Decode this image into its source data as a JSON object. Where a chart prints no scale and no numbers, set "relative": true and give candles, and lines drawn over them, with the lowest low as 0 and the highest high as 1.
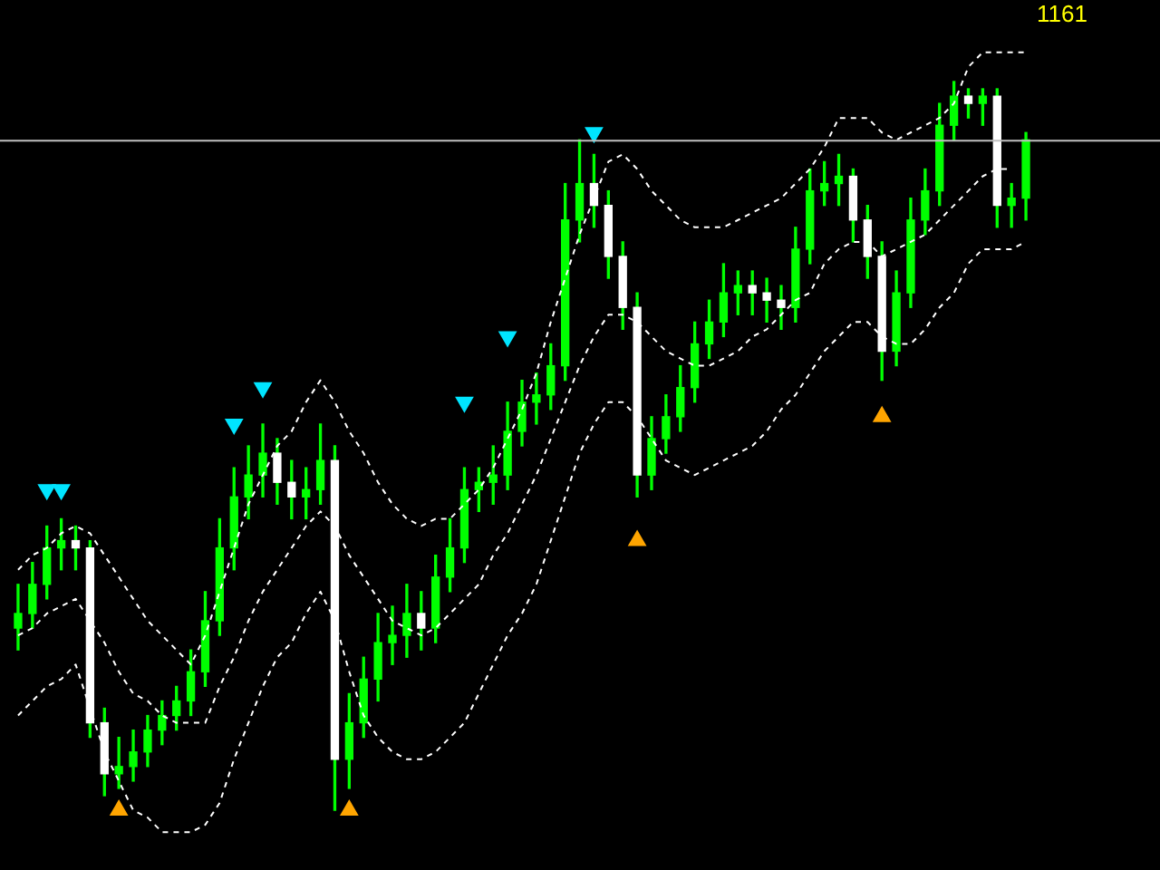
{
  "chart_data": {
    "type": "candlestick",
    "relative": true,
    "color": "#00ff00",
    "colors": [
      "#00ff00",
      "#00ff00",
      "#00ff00",
      "#00ff00",
      "#ffffff",
      "#ffffff",
      "#ffffff",
      "#00ff00",
      "#00ff00",
      "#00ff00",
      "#00ff00",
      "#00ff00",
      "#00ff00",
      "#00ff00",
      "#00ff00",
      "#00ff00",
      "#00ff00",
      "#00ff00",
      "#ffffff",
      "#ffffff",
      "#00ff00",
      "#00ff00",
      "#ffffff",
      "#00ff00",
      "#00ff00",
      "#00ff00",
      "#00ff00",
      "#00ff00",
      "#ffffff",
      "#00ff00",
      "#00ff00",
      "#00ff00",
      "#00ff00",
      "#00ff00",
      "#00ff00",
      "#00ff00",
      "#00ff00",
      "#00ff00",
      "#00ff00",
      "#00ff00",
      "#ffffff",
      "#ffffff",
      "#ffffff",
      "#ffffff",
      "#00ff00",
      "#00ff00",
      "#00ff00",
      "#00ff00",
      "#00ff00",
      "#00ff00",
      "#00ff00",
      "#ffffff",
      "#ffffff",
      "#ffffff",
      "#00ff00",
      "#00ff00",
      "#00ff00",
      "#00ff00",
      "#ffffff",
      "#ffffff",
      "#ffffff",
      "#00ff00",
      "#00ff00",
      "#00ff00",
      "#00ff00",
      "#00ff00",
      "#ffffff",
      "#00ff00",
      "#ffffff",
      "#00ff00",
      "#00ff00"
    ],
    "categories": [
      null,
      null,
      null,
      null,
      null,
      null,
      null,
      null,
      null,
      null,
      null,
      null,
      null,
      null,
      null,
      null,
      null,
      null,
      null,
      null,
      null,
      null,
      null,
      null,
      null,
      null,
      null,
      null,
      null,
      null,
      null,
      null,
      null,
      null,
      null,
      null,
      null,
      null,
      null,
      null,
      null,
      null,
      null,
      null,
      null,
      null,
      null,
      null,
      null,
      null,
      null,
      null,
      null,
      null,
      null,
      null,
      null,
      null,
      null,
      null,
      null,
      null,
      null,
      null,
      null,
      null,
      null,
      null,
      null,
      null,
      null
    ],
    "ohlc": [
      [
        0.25,
        0.31,
        0.22,
        0.27
      ],
      [
        0.27,
        0.34,
        0.25,
        0.31
      ],
      [
        0.31,
        0.39,
        0.29,
        0.36
      ],
      [
        0.36,
        0.4,
        0.33,
        0.37
      ],
      [
        0.37,
        0.39,
        0.33,
        0.36
      ],
      [
        0.36,
        0.37,
        0.1,
        0.12
      ],
      [
        0.12,
        0.14,
        0.02,
        0.05
      ],
      [
        0.05,
        0.1,
        0.03,
        0.06
      ],
      [
        0.06,
        0.11,
        0.04,
        0.08
      ],
      [
        0.08,
        0.13,
        0.06,
        0.11
      ],
      [
        0.11,
        0.15,
        0.09,
        0.13
      ],
      [
        0.13,
        0.17,
        0.11,
        0.15
      ],
      [
        0.15,
        0.22,
        0.13,
        0.19
      ],
      [
        0.19,
        0.3,
        0.17,
        0.26
      ],
      [
        0.26,
        0.4,
        0.24,
        0.36
      ],
      [
        0.36,
        0.47,
        0.33,
        0.43
      ],
      [
        0.43,
        0.5,
        0.4,
        0.46
      ],
      [
        0.46,
        0.53,
        0.43,
        0.49
      ],
      [
        0.49,
        0.51,
        0.42,
        0.45
      ],
      [
        0.45,
        0.48,
        0.4,
        0.43
      ],
      [
        0.43,
        0.47,
        0.4,
        0.44
      ],
      [
        0.44,
        0.53,
        0.42,
        0.48
      ],
      [
        0.48,
        0.5,
        0.0,
        0.07
      ],
      [
        0.07,
        0.16,
        0.03,
        0.12
      ],
      [
        0.12,
        0.21,
        0.1,
        0.18
      ],
      [
        0.18,
        0.27,
        0.15,
        0.23
      ],
      [
        0.23,
        0.28,
        0.2,
        0.24
      ],
      [
        0.24,
        0.31,
        0.21,
        0.27
      ],
      [
        0.27,
        0.3,
        0.22,
        0.25
      ],
      [
        0.25,
        0.35,
        0.23,
        0.32
      ],
      [
        0.32,
        0.4,
        0.3,
        0.36
      ],
      [
        0.36,
        0.47,
        0.34,
        0.44
      ],
      [
        0.44,
        0.47,
        0.41,
        0.45
      ],
      [
        0.45,
        0.5,
        0.42,
        0.46
      ],
      [
        0.46,
        0.56,
        0.44,
        0.52
      ],
      [
        0.52,
        0.59,
        0.5,
        0.56
      ],
      [
        0.56,
        0.6,
        0.53,
        0.57
      ],
      [
        0.57,
        0.64,
        0.55,
        0.61
      ],
      [
        0.61,
        0.86,
        0.59,
        0.81
      ],
      [
        0.81,
        0.92,
        0.78,
        0.86
      ],
      [
        0.86,
        0.9,
        0.8,
        0.83
      ],
      [
        0.83,
        0.85,
        0.73,
        0.76
      ],
      [
        0.76,
        0.78,
        0.66,
        0.69
      ],
      [
        0.69,
        0.71,
        0.43,
        0.46
      ],
      [
        0.46,
        0.54,
        0.44,
        0.51
      ],
      [
        0.51,
        0.57,
        0.49,
        0.54
      ],
      [
        0.54,
        0.61,
        0.52,
        0.58
      ],
      [
        0.58,
        0.67,
        0.56,
        0.64
      ],
      [
        0.64,
        0.7,
        0.62,
        0.67
      ],
      [
        0.67,
        0.75,
        0.65,
        0.71
      ],
      [
        0.71,
        0.74,
        0.68,
        0.72
      ],
      [
        0.72,
        0.74,
        0.68,
        0.71
      ],
      [
        0.71,
        0.73,
        0.67,
        0.7
      ],
      [
        0.7,
        0.72,
        0.66,
        0.69
      ],
      [
        0.69,
        0.8,
        0.67,
        0.77
      ],
      [
        0.77,
        0.88,
        0.75,
        0.85
      ],
      [
        0.85,
        0.89,
        0.83,
        0.86
      ],
      [
        0.86,
        0.9,
        0.83,
        0.87
      ],
      [
        0.87,
        0.88,
        0.78,
        0.81
      ],
      [
        0.81,
        0.83,
        0.73,
        0.76
      ],
      [
        0.76,
        0.78,
        0.59,
        0.63
      ],
      [
        0.63,
        0.74,
        0.61,
        0.71
      ],
      [
        0.71,
        0.84,
        0.69,
        0.81
      ],
      [
        0.81,
        0.88,
        0.79,
        0.85
      ],
      [
        0.85,
        0.97,
        0.83,
        0.94
      ],
      [
        0.94,
        1.0,
        0.92,
        0.98
      ],
      [
        0.98,
        0.99,
        0.95,
        0.97
      ],
      [
        0.97,
        0.99,
        0.94,
        0.98
      ],
      [
        0.98,
        0.99,
        0.8,
        0.83
      ],
      [
        0.83,
        0.86,
        0.8,
        0.84
      ],
      [
        0.84,
        0.93,
        0.81,
        0.92
      ]
    ],
    "series": [
      {
        "type": "line",
        "line_style": "dashed",
        "color": "#ffffff",
        "values": [
          0.33,
          0.35,
          0.36,
          0.38,
          0.39,
          0.38,
          0.35,
          0.32,
          0.29,
          0.26,
          0.24,
          0.22,
          0.2,
          0.24,
          0.3,
          0.36,
          0.42,
          0.46,
          0.5,
          0.52,
          0.56,
          0.59,
          0.56,
          0.52,
          0.49,
          0.45,
          0.42,
          0.4,
          0.39,
          0.4,
          0.4,
          0.42,
          0.44,
          0.47,
          0.51,
          0.55,
          0.6,
          0.67,
          0.73,
          0.79,
          0.84,
          0.89,
          0.9,
          0.88,
          0.85,
          0.83,
          0.81,
          0.8,
          0.8,
          0.8,
          0.81,
          0.82,
          0.83,
          0.84,
          0.86,
          0.88,
          0.91,
          0.95,
          0.95,
          0.95,
          0.93,
          0.92,
          0.93,
          0.94,
          0.95,
          0.97,
          1.02,
          1.04,
          1.04,
          1.04,
          1.04
        ]
      },
      {
        "type": "line",
        "line_style": "dashed",
        "color": "#ffffff",
        "values": [
          0.24,
          0.25,
          0.27,
          0.28,
          0.29,
          0.26,
          0.23,
          0.19,
          0.16,
          0.15,
          0.13,
          0.12,
          0.12,
          0.12,
          0.17,
          0.21,
          0.26,
          0.3,
          0.33,
          0.36,
          0.39,
          0.41,
          0.39,
          0.35,
          0.32,
          0.29,
          0.26,
          0.25,
          0.24,
          0.25,
          0.27,
          0.29,
          0.31,
          0.35,
          0.38,
          0.42,
          0.46,
          0.51,
          0.56,
          0.61,
          0.65,
          0.68,
          0.68,
          0.67,
          0.65,
          0.63,
          0.62,
          0.61,
          0.61,
          0.62,
          0.63,
          0.65,
          0.66,
          0.68,
          0.7,
          0.71,
          0.75,
          0.77,
          0.78,
          0.78,
          0.76,
          0.77,
          0.78,
          0.79,
          0.81,
          0.83,
          0.85,
          0.87,
          0.88,
          0.88,
          null
        ]
      },
      {
        "type": "line",
        "line_style": "dashed",
        "color": "#ffffff",
        "values": [
          0.13,
          0.15,
          0.17,
          0.18,
          0.2,
          0.14,
          0.08,
          0.04,
          0.0,
          -0.01,
          -0.03,
          -0.03,
          -0.03,
          -0.02,
          0.01,
          0.07,
          0.12,
          0.17,
          0.21,
          0.23,
          0.27,
          0.3,
          0.26,
          0.19,
          0.13,
          0.1,
          0.08,
          0.07,
          0.07,
          0.08,
          0.1,
          0.12,
          0.16,
          0.2,
          0.24,
          0.27,
          0.31,
          0.37,
          0.43,
          0.49,
          0.53,
          0.56,
          0.56,
          0.54,
          0.51,
          0.48,
          0.47,
          0.46,
          0.47,
          0.48,
          0.49,
          0.5,
          0.52,
          0.55,
          0.57,
          0.6,
          0.63,
          0.65,
          0.67,
          0.67,
          0.65,
          0.64,
          0.64,
          0.66,
          0.69,
          0.71,
          0.75,
          0.77,
          0.77,
          0.77,
          0.78
        ]
      },
      {
        "type": "scatter",
        "marker": "triangle",
        "color": "#00e5ff",
        "values": [
          null,
          null,
          0.44,
          0.44,
          null,
          null,
          null,
          null,
          null,
          null,
          null,
          null,
          null,
          null,
          null,
          0.53,
          null,
          0.58,
          null,
          null,
          null,
          null,
          null,
          null,
          null,
          null,
          null,
          null,
          null,
          null,
          null,
          0.56,
          null,
          null,
          0.65,
          null,
          null,
          null,
          null,
          null,
          0.93,
          null,
          null,
          null,
          null,
          null,
          null,
          null,
          null,
          null,
          null,
          null,
          null,
          null,
          null,
          null,
          null,
          null,
          null,
          null,
          null,
          null,
          null,
          null,
          null,
          null,
          null,
          null,
          null,
          null,
          null
        ]
      },
      {
        "type": "scatter",
        "marker": "triangle",
        "color": "#ffa500",
        "values": [
          null,
          null,
          null,
          null,
          null,
          null,
          null,
          0.0,
          null,
          null,
          null,
          null,
          null,
          null,
          null,
          null,
          null,
          null,
          null,
          null,
          null,
          null,
          null,
          0.0,
          null,
          null,
          null,
          null,
          null,
          null,
          null,
          null,
          null,
          null,
          null,
          null,
          null,
          null,
          null,
          null,
          null,
          null,
          null,
          0.37,
          null,
          null,
          null,
          null,
          null,
          null,
          null,
          null,
          null,
          null,
          null,
          null,
          null,
          null,
          null,
          null,
          0.54,
          null,
          null,
          null,
          null,
          null,
          null,
          null,
          null,
          null,
          null
        ]
      }
    ],
    "ref_lines": [
      {
        "axis": "y",
        "value": 0.92,
        "color": "#c0c0c0"
      }
    ],
    "annotations": [
      "1161"
    ]
  }
}
